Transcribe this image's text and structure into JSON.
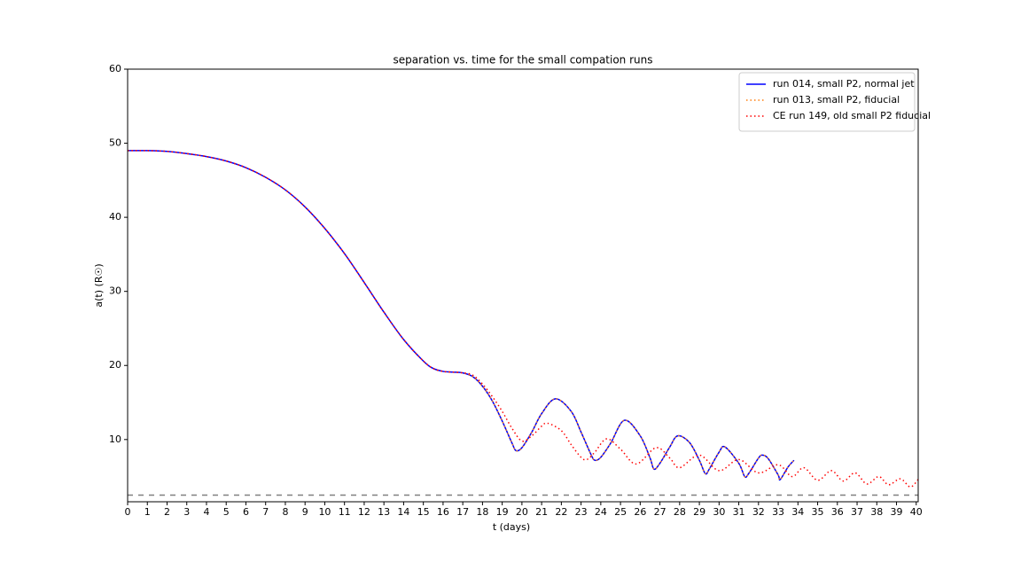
{
  "chart_data": {
    "type": "line",
    "title": "separation vs. time for the small compation runs",
    "xlabel": "t (days)",
    "ylabel": "a(t) (R☉)",
    "xlim": [
      0,
      40.1
    ],
    "ylim": [
      1.6,
      60
    ],
    "xticks": [
      0,
      1,
      2,
      3,
      4,
      5,
      6,
      7,
      8,
      9,
      10,
      11,
      12,
      13,
      14,
      15,
      16,
      17,
      18,
      19,
      20,
      21,
      22,
      23,
      24,
      25,
      26,
      27,
      28,
      29,
      30,
      31,
      32,
      33,
      34,
      35,
      36,
      37,
      38,
      39,
      40
    ],
    "yticks": [
      10,
      20,
      30,
      40,
      50,
      60
    ],
    "legend": "upper right",
    "hline": {
      "value": 2.5,
      "color": "#808080",
      "linestyle": "dashed"
    },
    "series": [
      {
        "name": "run 014, small P2, normal jet",
        "color": "#0000ff",
        "linestyle": "solid",
        "x": [
          0,
          1,
          2,
          3,
          4,
          5,
          6,
          7,
          8,
          9,
          10,
          11,
          12,
          13,
          14,
          15,
          15.5,
          16,
          16.5,
          17,
          17.5,
          18,
          18.5,
          19,
          19.5,
          19.7,
          20,
          20.5,
          21,
          21.7,
          22.5,
          23,
          23.5,
          23.7,
          24,
          24.5,
          25.2,
          26,
          26.5,
          26.7,
          27,
          27.5,
          27.9,
          28.5,
          29,
          29.3,
          29.5,
          30,
          30.3,
          31,
          31.3,
          31.5,
          32,
          32.2,
          32.5,
          33,
          33.1,
          33.5,
          33.8
        ],
        "values": [
          49,
          49,
          48.9,
          48.6,
          48.2,
          47.6,
          46.7,
          45.4,
          43.7,
          41.4,
          38.5,
          35.1,
          31.2,
          27.2,
          23.5,
          20.6,
          19.6,
          19.2,
          19.1,
          19.0,
          18.5,
          17.2,
          15.2,
          12.5,
          9.5,
          8.5,
          8.9,
          11.0,
          13.5,
          15.5,
          13.8,
          11.0,
          8.0,
          7.2,
          7.6,
          9.5,
          12.6,
          10.5,
          7.5,
          6.0,
          6.8,
          9.0,
          10.5,
          9.6,
          7.2,
          5.4,
          6.0,
          8.3,
          9.0,
          6.8,
          5.0,
          5.4,
          7.5,
          7.9,
          7.4,
          5.2,
          4.6,
          6.3,
          7.2
        ]
      },
      {
        "name": "run 013, small P2, fiducial",
        "color": "#ff7f0e",
        "linestyle": "dotted",
        "x": [
          0,
          1,
          2,
          3,
          4,
          5,
          6,
          7,
          8,
          9,
          10,
          11,
          12,
          13,
          14,
          15,
          15.5,
          16,
          16.5,
          17,
          17.5,
          18,
          18.5,
          19,
          19.5,
          19.7,
          20,
          20.5,
          21,
          21.7,
          22.5,
          23,
          23.5,
          23.7,
          24,
          24.5,
          25.2,
          26,
          26.5,
          26.7,
          27,
          27.5,
          27.9,
          28.5,
          29,
          29.3,
          29.5,
          30,
          30.3,
          31,
          31.3,
          31.5,
          32,
          32.2,
          32.5,
          33,
          33.1,
          33.5,
          33.8
        ],
        "values": [
          49,
          49,
          48.9,
          48.6,
          48.2,
          47.6,
          46.7,
          45.4,
          43.7,
          41.4,
          38.5,
          35.1,
          31.2,
          27.2,
          23.5,
          20.6,
          19.6,
          19.2,
          19.1,
          19.0,
          18.5,
          17.2,
          15.2,
          12.5,
          9.5,
          8.5,
          8.9,
          11.0,
          13.5,
          15.5,
          13.8,
          11.0,
          8.0,
          7.2,
          7.6,
          9.5,
          12.6,
          10.5,
          7.5,
          6.0,
          6.8,
          9.0,
          10.5,
          9.6,
          7.2,
          5.4,
          6.0,
          8.3,
          9.0,
          6.8,
          5.0,
          5.4,
          7.5,
          7.9,
          7.4,
          5.2,
          4.6,
          6.3,
          7.2
        ]
      },
      {
        "name": "CE run 149, old small P2 fiducial",
        "color": "#ff0000",
        "linestyle": "dotted",
        "x": [
          0,
          1,
          2,
          3,
          4,
          5,
          6,
          7,
          8,
          9,
          10,
          11,
          12,
          13,
          14,
          15,
          15.5,
          16,
          16.5,
          17,
          17.5,
          18,
          18.5,
          19,
          19.5,
          20,
          20.5,
          21,
          21.3,
          22,
          22.5,
          23,
          23.3,
          23.7,
          24.3,
          25,
          25.8,
          26.8,
          27.5,
          28,
          29,
          30,
          31,
          32,
          33,
          33.7,
          34.3,
          35,
          35.7,
          36.3,
          36.9,
          37.5,
          38.1,
          38.6,
          39.2,
          39.7,
          40.1
        ],
        "values": [
          49,
          49,
          48.9,
          48.6,
          48.2,
          47.6,
          46.7,
          45.4,
          43.7,
          41.4,
          38.5,
          35.1,
          31.2,
          27.2,
          23.5,
          20.6,
          19.6,
          19.2,
          19.1,
          19.0,
          18.7,
          17.5,
          15.8,
          13.8,
          11.5,
          9.8,
          10.5,
          11.8,
          12.2,
          11.2,
          9.3,
          7.6,
          7.3,
          8.3,
          10.1,
          8.7,
          6.7,
          8.9,
          7.5,
          6.2,
          7.9,
          5.8,
          7.3,
          5.5,
          6.6,
          5.0,
          6.2,
          4.5,
          5.8,
          4.4,
          5.5,
          4.0,
          5.0,
          3.9,
          4.7,
          3.6,
          4.6
        ]
      }
    ]
  }
}
